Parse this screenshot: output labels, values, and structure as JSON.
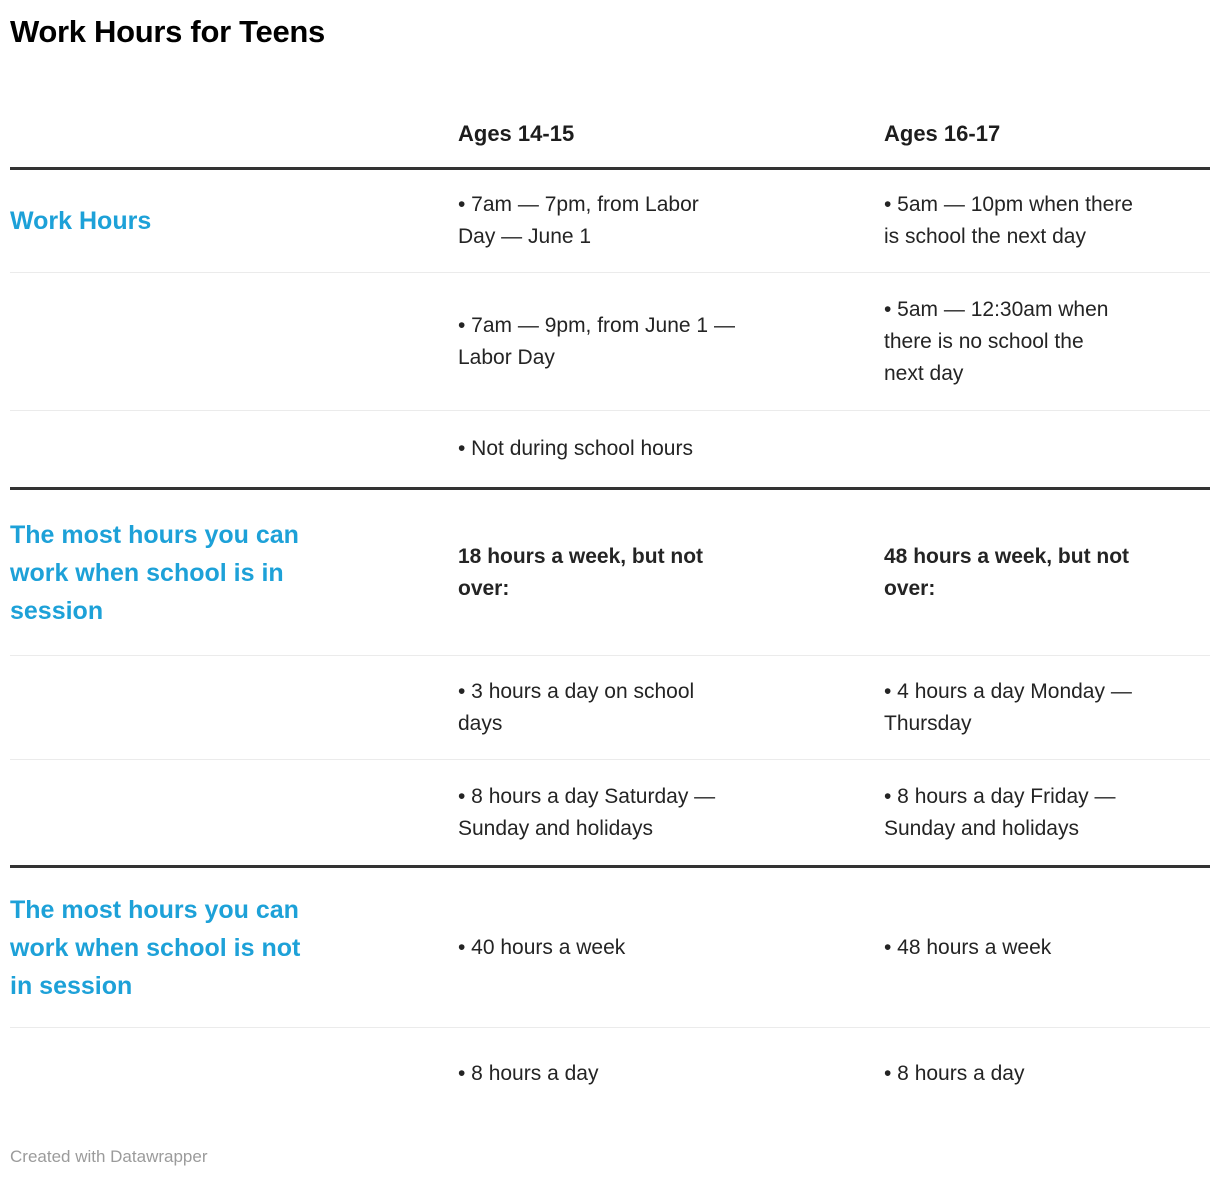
{
  "title": "Work Hours for Teens",
  "header": {
    "col1": "Ages 14-15",
    "col2": "Ages 16-17"
  },
  "sections": [
    {
      "label": "Work Hours",
      "rows": [
        {
          "col1": "• 7am — 7pm, from Labor\nDay — June 1",
          "col2": "• 5am — 10pm when there\nis school the next day"
        },
        {
          "col1": "• 7am — 9pm, from June 1 —\nLabor Day",
          "col2": "• 5am — 12:30am when\nthere is no school the\nnext day"
        },
        {
          "col1": "• Not during school hours",
          "col2": ""
        }
      ]
    },
    {
      "label": "The most hours you can\nwork when school is in\nsession",
      "rows": [
        {
          "col1": "18 hours a week, but not\nover:",
          "col2": "48 hours a week, but not\nover:",
          "bold": true
        },
        {
          "col1": "• 3 hours a day on school\ndays",
          "col2": "• 4 hours a day Monday —\nThursday"
        },
        {
          "col1": "• 8 hours a day Saturday —\nSunday and holidays",
          "col2": "• 8 hours a day Friday —\nSunday and holidays"
        }
      ]
    },
    {
      "label": "The most hours you can\nwork when school is not\nin session",
      "rows": [
        {
          "col1": "• 40 hours a week",
          "col2": "• 48 hours a week"
        },
        {
          "col1": "• 8 hours a day",
          "col2": "• 8 hours a day"
        }
      ]
    }
  ],
  "footer": "Created with Datawrapper",
  "colors": {
    "accent": "#1da1d8",
    "text": "#1d1d1d",
    "title": "#000000",
    "rule_dark": "#333333",
    "rule_light": "#ebebeb",
    "footer_text": "#9b9b9b",
    "background": "#ffffff"
  },
  "chart_data": {
    "type": "table",
    "title": "Work Hours for Teens",
    "columns": [
      "",
      "Ages 14-15",
      "Ages 16-17"
    ],
    "rows": [
      [
        "Work Hours",
        "• 7am — 7pm, from Labor Day — June 1",
        "• 5am — 10pm when there is school the next day"
      ],
      [
        "",
        "• 7am — 9pm, from June 1 — Labor Day",
        "• 5am — 12:30am when there is no school the next day"
      ],
      [
        "",
        "• Not during school hours",
        ""
      ],
      [
        "The most hours you can work when school is in session",
        "18 hours a week, but not over:",
        "48 hours a week, but not over:"
      ],
      [
        "",
        "• 3 hours a day on school days",
        "• 4 hours a day Monday — Thursday"
      ],
      [
        "",
        "• 8 hours a day Saturday — Sunday and holidays",
        "• 8 hours a day Friday — Sunday and holidays"
      ],
      [
        "The most hours you can work when school is not in session",
        "• 40 hours a week",
        "• 48 hours a week"
      ],
      [
        "",
        "• 8 hours a day",
        "• 8 hours a day"
      ]
    ],
    "legend_position": "none",
    "grid": "horizontal-rules"
  }
}
